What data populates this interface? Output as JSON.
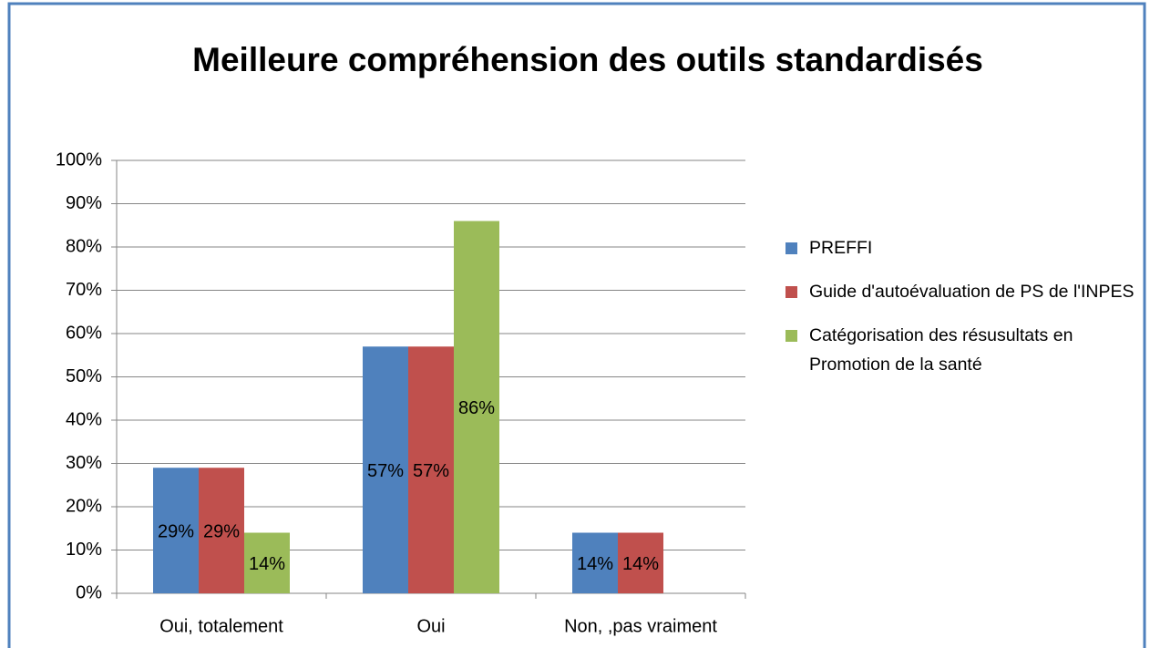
{
  "chart_data": {
    "type": "bar",
    "title": "Meilleure compréhension des outils standardisés",
    "categories": [
      "Oui, totalement",
      "Oui",
      "Non, ,pas vraiment"
    ],
    "series": [
      {
        "name": "PREFFI",
        "color": "#4f81bd",
        "values": [
          29,
          57,
          14
        ],
        "value_labels": [
          "29%",
          "57%",
          "14%"
        ]
      },
      {
        "name": "Guide d'autoévaluation de PS de l'INPES",
        "color": "#c0504d",
        "values": [
          29,
          57,
          14
        ],
        "value_labels": [
          "29%",
          "57%",
          "14%"
        ]
      },
      {
        "name": "Catégorisation des résusultats en Promotion de la santé",
        "color": "#9bbb59",
        "values": [
          14,
          86,
          null
        ],
        "value_labels": [
          "14%",
          "86%",
          null
        ]
      }
    ],
    "ylim": [
      0,
      100
    ],
    "yticks": [
      {
        "value": 0,
        "label": "0%"
      },
      {
        "value": 10,
        "label": "10%"
      },
      {
        "value": 20,
        "label": "20%"
      },
      {
        "value": 30,
        "label": "30%"
      },
      {
        "value": 40,
        "label": "40%"
      },
      {
        "value": 50,
        "label": "50%"
      },
      {
        "value": 60,
        "label": "60%"
      },
      {
        "value": 70,
        "label": "70%"
      },
      {
        "value": 80,
        "label": "80%"
      },
      {
        "value": 90,
        "label": "90%"
      },
      {
        "value": 100,
        "label": "100%"
      }
    ],
    "grid": true,
    "legend": "right"
  }
}
